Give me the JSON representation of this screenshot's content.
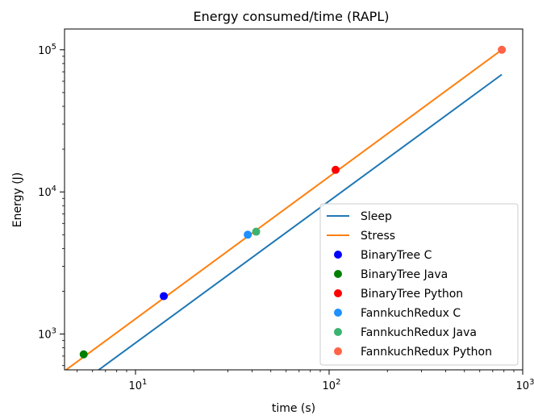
{
  "chart_data": {
    "type": "scatter",
    "title": "Energy consumed/time (RAPL)",
    "xlabel": "time (s)",
    "ylabel": "Energy (J)",
    "xscale": "log",
    "yscale": "log",
    "xlim": [
      4.3,
      1000
    ],
    "ylim": [
      560,
      140000
    ],
    "grid": false,
    "legend_position": "lower-right",
    "x_ticks": [
      {
        "value": 10,
        "base": "10",
        "exp": "1"
      },
      {
        "value": 100,
        "base": "10",
        "exp": "2"
      },
      {
        "value": 1000,
        "base": "10",
        "exp": "3"
      }
    ],
    "y_ticks": [
      {
        "value": 1000,
        "base": "10",
        "exp": "3"
      },
      {
        "value": 10000,
        "base": "10",
        "exp": "4"
      },
      {
        "value": 100000,
        "base": "10",
        "exp": "5"
      }
    ],
    "lines": [
      {
        "name": "Sleep",
        "color": "#1f77b4",
        "x": [
          6.0,
          780
        ],
        "y": [
          520,
          67000
        ]
      },
      {
        "name": "Stress",
        "color": "#ff7f0e",
        "x": [
          4.3,
          780
        ],
        "y": [
          550,
          100000
        ]
      }
    ],
    "points": [
      {
        "name": "BinaryTree C",
        "color": "#0000ff",
        "x": 14,
        "y": 1850
      },
      {
        "name": "BinaryTree Java",
        "color": "#008000",
        "x": 5.4,
        "y": 720
      },
      {
        "name": "BinaryTree Python",
        "color": "#ff0000",
        "x": 108,
        "y": 14300
      },
      {
        "name": "FannkuchRedux C",
        "color": "#1e90ff",
        "x": 38,
        "y": 5000
      },
      {
        "name": "FannkuchRedux Java",
        "color": "#3cb371",
        "x": 42,
        "y": 5250
      },
      {
        "name": "FannkuchRedux Python",
        "color": "#ff6347",
        "x": 780,
        "y": 100000
      }
    ]
  }
}
